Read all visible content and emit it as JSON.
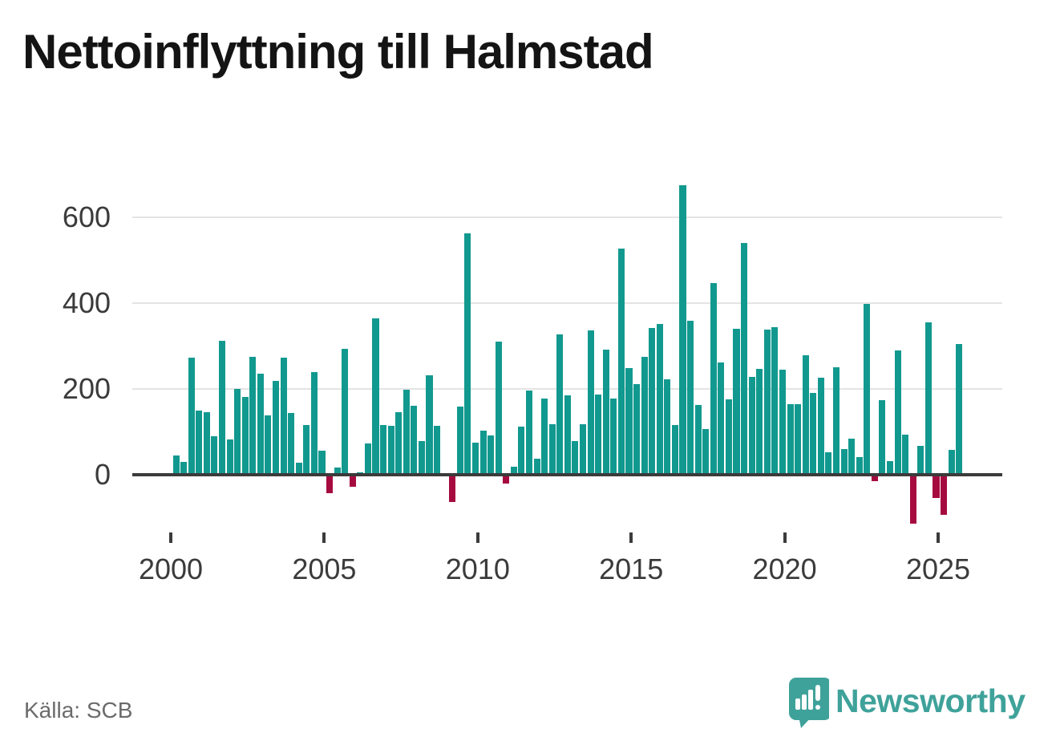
{
  "title": "Nettoinflyttning till Halmstad",
  "source": {
    "text": "Källa: SCB"
  },
  "brand": {
    "name": "Newsworthy",
    "logo_icon": "speech-bubble-bar-chart-exclamation"
  },
  "colors": {
    "background": "#ffffff",
    "title_text": "#141414",
    "positive_bar": "#12998f",
    "negative_bar": "#a60b40",
    "axis": "#3b3b3b",
    "grid": "#e4e4e4",
    "tick_label": "#3b3b3b",
    "source_text": "#6b6b6b",
    "brand_teal": "#3fa29a"
  },
  "chart_data": {
    "type": "bar",
    "title": "Nettoinflyttning till Halmstad",
    "xlabel": "",
    "ylabel": "",
    "frequency": "quarterly",
    "x_tick_labels": [
      "2000",
      "2005",
      "2010",
      "2015",
      "2020",
      "2025"
    ],
    "y_tick_labels": [
      "0",
      "200",
      "400",
      "600"
    ],
    "y_ticks": [
      0,
      200,
      400,
      600
    ],
    "ylim": [
      -130,
      690
    ],
    "grid": "horizontal-only",
    "legend": "none",
    "series": [
      {
        "name": "Nettoinflyttning",
        "points": [
          {
            "q": "2000Q1",
            "v": 45
          },
          {
            "q": "2000Q2",
            "v": 30
          },
          {
            "q": "2000Q3",
            "v": 273
          },
          {
            "q": "2000Q4",
            "v": 150
          },
          {
            "q": "2001Q1",
            "v": 145
          },
          {
            "q": "2001Q2",
            "v": 89
          },
          {
            "q": "2001Q3",
            "v": 313
          },
          {
            "q": "2001Q4",
            "v": 81
          },
          {
            "q": "2002Q1",
            "v": 199
          },
          {
            "q": "2002Q2",
            "v": 182
          },
          {
            "q": "2002Q3",
            "v": 274
          },
          {
            "q": "2002Q4",
            "v": 236
          },
          {
            "q": "2003Q1",
            "v": 138
          },
          {
            "q": "2003Q2",
            "v": 218
          },
          {
            "q": "2003Q3",
            "v": 273
          },
          {
            "q": "2003Q4",
            "v": 144
          },
          {
            "q": "2004Q1",
            "v": 27
          },
          {
            "q": "2004Q2",
            "v": 115
          },
          {
            "q": "2004Q3",
            "v": 240
          },
          {
            "q": "2004Q4",
            "v": 55
          },
          {
            "q": "2005Q1",
            "v": -43
          },
          {
            "q": "2005Q2",
            "v": 17
          },
          {
            "q": "2005Q3",
            "v": 293
          },
          {
            "q": "2005Q4",
            "v": -28
          },
          {
            "q": "2006Q1",
            "v": 5
          },
          {
            "q": "2006Q2",
            "v": 73
          },
          {
            "q": "2006Q3",
            "v": 364
          },
          {
            "q": "2006Q4",
            "v": 116
          },
          {
            "q": "2007Q1",
            "v": 114
          },
          {
            "q": "2007Q2",
            "v": 146
          },
          {
            "q": "2007Q3",
            "v": 198
          },
          {
            "q": "2007Q4",
            "v": 161
          },
          {
            "q": "2008Q1",
            "v": 79
          },
          {
            "q": "2008Q2",
            "v": 232
          },
          {
            "q": "2008Q3",
            "v": 114
          },
          {
            "q": "2008Q4",
            "v": 0
          },
          {
            "q": "2009Q1",
            "v": -65
          },
          {
            "q": "2009Q2",
            "v": 159
          },
          {
            "q": "2009Q3",
            "v": 563
          },
          {
            "q": "2009Q4",
            "v": 74
          },
          {
            "q": "2010Q1",
            "v": 103
          },
          {
            "q": "2010Q2",
            "v": 92
          },
          {
            "q": "2010Q3",
            "v": 311
          },
          {
            "q": "2010Q4",
            "v": -22
          },
          {
            "q": "2011Q1",
            "v": 19
          },
          {
            "q": "2011Q2",
            "v": 111
          },
          {
            "q": "2011Q3",
            "v": 197
          },
          {
            "q": "2011Q4",
            "v": 37
          },
          {
            "q": "2012Q1",
            "v": 178
          },
          {
            "q": "2012Q2",
            "v": 118
          },
          {
            "q": "2012Q3",
            "v": 327
          },
          {
            "q": "2012Q4",
            "v": 184
          },
          {
            "q": "2013Q1",
            "v": 78
          },
          {
            "q": "2013Q2",
            "v": 118
          },
          {
            "q": "2013Q3",
            "v": 337
          },
          {
            "q": "2013Q4",
            "v": 187
          },
          {
            "q": "2014Q1",
            "v": 292
          },
          {
            "q": "2014Q2",
            "v": 177
          },
          {
            "q": "2014Q3",
            "v": 527
          },
          {
            "q": "2014Q4",
            "v": 248
          },
          {
            "q": "2015Q1",
            "v": 211
          },
          {
            "q": "2015Q2",
            "v": 275
          },
          {
            "q": "2015Q3",
            "v": 342
          },
          {
            "q": "2015Q4",
            "v": 352
          },
          {
            "q": "2016Q1",
            "v": 223
          },
          {
            "q": "2016Q2",
            "v": 115
          },
          {
            "q": "2016Q3",
            "v": 676
          },
          {
            "q": "2016Q4",
            "v": 359
          },
          {
            "q": "2017Q1",
            "v": 163
          },
          {
            "q": "2017Q2",
            "v": 106
          },
          {
            "q": "2017Q3",
            "v": 448
          },
          {
            "q": "2017Q4",
            "v": 261
          },
          {
            "q": "2018Q1",
            "v": 175
          },
          {
            "q": "2018Q2",
            "v": 340
          },
          {
            "q": "2018Q3",
            "v": 541
          },
          {
            "q": "2018Q4",
            "v": 228
          },
          {
            "q": "2019Q1",
            "v": 247
          },
          {
            "q": "2019Q2",
            "v": 339
          },
          {
            "q": "2019Q3",
            "v": 344
          },
          {
            "q": "2019Q4",
            "v": 244
          },
          {
            "q": "2020Q1",
            "v": 165
          },
          {
            "q": "2020Q2",
            "v": 165
          },
          {
            "q": "2020Q3",
            "v": 279
          },
          {
            "q": "2020Q4",
            "v": 190
          },
          {
            "q": "2021Q1",
            "v": 227
          },
          {
            "q": "2021Q2",
            "v": 51
          },
          {
            "q": "2021Q3",
            "v": 251
          },
          {
            "q": "2021Q4",
            "v": 59
          },
          {
            "q": "2022Q1",
            "v": 84
          },
          {
            "q": "2022Q2",
            "v": 40
          },
          {
            "q": "2022Q3",
            "v": 398
          },
          {
            "q": "2022Q4",
            "v": -15
          },
          {
            "q": "2023Q1",
            "v": 173
          },
          {
            "q": "2023Q2",
            "v": 32
          },
          {
            "q": "2023Q3",
            "v": 289
          },
          {
            "q": "2023Q4",
            "v": 93
          },
          {
            "q": "2024Q1",
            "v": -115
          },
          {
            "q": "2024Q2",
            "v": 67
          },
          {
            "q": "2024Q3",
            "v": 356
          },
          {
            "q": "2024Q4",
            "v": -55
          },
          {
            "q": "2025Q1",
            "v": -94
          },
          {
            "q": "2025Q2",
            "v": 57
          },
          {
            "q": "2025Q3",
            "v": 305
          }
        ]
      }
    ]
  }
}
